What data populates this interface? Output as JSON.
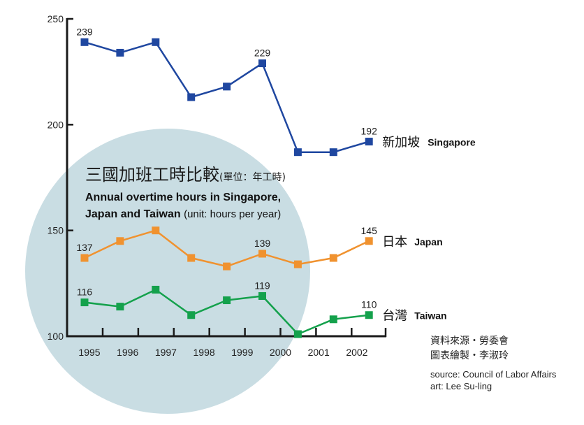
{
  "chart_data": {
    "type": "line",
    "title": "三國加班工時比較",
    "title_unit": "(單位：年工時)",
    "subtitle": "Annual overtime hours in Singapore, Japan and Taiwan",
    "subtitle_line1": "Annual overtime hours in Singapore,",
    "subtitle_line2_bold": "Japan and Taiwan",
    "subtitle_unit": "(unit: hours per year)",
    "xlabel": "",
    "ylabel": "",
    "ylim": [
      100,
      250
    ],
    "y_ticks": [
      100,
      150,
      200,
      250
    ],
    "x_tick_labels": [
      "1995",
      "1996",
      "1997",
      "1998",
      "1999",
      "2000",
      "2001",
      "2002"
    ],
    "point_count": 9,
    "grid": false,
    "legend": "right (inline series labels)",
    "series": [
      {
        "name": "Singapore",
        "name_zh": "新加坡",
        "color": "#1f47a0",
        "values": [
          239,
          234,
          239,
          213,
          218,
          229,
          187,
          187,
          192
        ],
        "labeled_points": [
          0,
          5,
          8
        ]
      },
      {
        "name": "Japan",
        "name_zh": "日本",
        "color": "#f0922f",
        "values": [
          137,
          145,
          150,
          137,
          133,
          139,
          134,
          137,
          145
        ],
        "labeled_points": [
          0,
          5,
          8
        ]
      },
      {
        "name": "Taiwan",
        "name_zh": "台灣",
        "color": "#14a14c",
        "values": [
          116,
          114,
          122,
          110,
          117,
          119,
          101,
          108,
          110
        ],
        "labeled_points": [
          0,
          5,
          8
        ]
      }
    ],
    "background_circle_color": "#c9dde3",
    "axis_color": "#1a1a1a"
  },
  "credits": {
    "source_zh": "資料來源・勞委會",
    "art_zh": "圖表繪製・李淑玲",
    "source_en": "source: Council of Labor Affairs",
    "art_en": "art: Lee Su-ling"
  }
}
